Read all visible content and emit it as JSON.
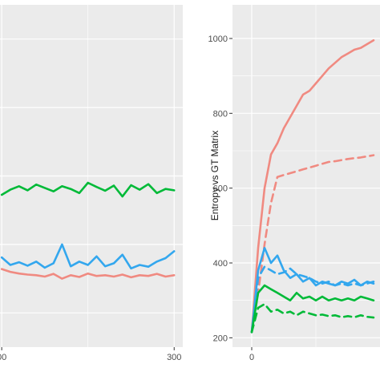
{
  "chart_data": [
    {
      "type": "line",
      "title": "",
      "xlabel": "",
      "ylabel": "",
      "xlim": [
        -3,
        315
      ],
      "ylim": [
        0,
        1
      ],
      "grid": true,
      "x_ticks": [
        0,
        300
      ],
      "x_tick_labels": [
        "00",
        "300"
      ],
      "y_ticks": [],
      "x": [
        0,
        15,
        30,
        45,
        60,
        75,
        90,
        105,
        120,
        135,
        150,
        165,
        180,
        195,
        210,
        225,
        240,
        255,
        270,
        285,
        300
      ],
      "series": [
        {
          "color": "#00BA38",
          "dash": false,
          "values": [
            0.445,
            0.46,
            0.47,
            0.458,
            0.475,
            0.465,
            0.455,
            0.47,
            0.462,
            0.45,
            0.48,
            0.468,
            0.457,
            0.472,
            0.44,
            0.473,
            0.46,
            0.476,
            0.45,
            0.462,
            0.458
          ]
        },
        {
          "color": "#33A7EE",
          "dash": false,
          "values": [
            0.262,
            0.24,
            0.248,
            0.238,
            0.25,
            0.232,
            0.245,
            0.3,
            0.236,
            0.25,
            0.24,
            0.265,
            0.236,
            0.245,
            0.27,
            0.23,
            0.24,
            0.235,
            0.25,
            0.26,
            0.28
          ]
        },
        {
          "color": "#F08A81",
          "dash": false,
          "values": [
            0.228,
            0.22,
            0.215,
            0.212,
            0.21,
            0.206,
            0.214,
            0.2,
            0.21,
            0.205,
            0.215,
            0.208,
            0.21,
            0.206,
            0.212,
            0.204,
            0.21,
            0.208,
            0.214,
            0.206,
            0.21
          ]
        }
      ]
    },
    {
      "type": "line",
      "title": "",
      "xlabel": "",
      "ylabel": "Entropy vs GT Matrix",
      "xlim": [
        -30,
        200
      ],
      "ylim": [
        175,
        1090
      ],
      "grid": true,
      "x_ticks": [
        0
      ],
      "x_tick_labels": [
        "0"
      ],
      "y_ticks": [
        200,
        400,
        600,
        800,
        1000
      ],
      "x": [
        0,
        10,
        20,
        30,
        40,
        50,
        60,
        70,
        80,
        90,
        100,
        110,
        120,
        130,
        140,
        150,
        160,
        170,
        180,
        190
      ],
      "series": [
        {
          "color": "#F08A81",
          "dash": false,
          "values": [
            215,
            440,
            600,
            690,
            720,
            760,
            790,
            820,
            850,
            860,
            880,
            900,
            920,
            935,
            950,
            960,
            970,
            975,
            985,
            995
          ]
        },
        {
          "color": "#F08A81",
          "dash": true,
          "values": [
            215,
            320,
            450,
            560,
            630,
            635,
            640,
            645,
            650,
            655,
            660,
            665,
            670,
            672,
            675,
            678,
            680,
            682,
            685,
            688
          ]
        },
        {
          "color": "#33A7EE",
          "dash": false,
          "values": [
            215,
            380,
            440,
            400,
            420,
            380,
            360,
            370,
            350,
            360,
            340,
            350,
            345,
            340,
            350,
            345,
            355,
            340,
            350,
            345
          ]
        },
        {
          "color": "#33A7EE",
          "dash": true,
          "values": [
            215,
            360,
            390,
            380,
            370,
            375,
            385,
            370,
            365,
            360,
            350,
            345,
            350,
            340,
            345,
            340,
            345,
            340,
            345,
            350
          ]
        },
        {
          "color": "#00BA38",
          "dash": false,
          "values": [
            215,
            320,
            340,
            330,
            320,
            310,
            300,
            320,
            305,
            310,
            300,
            310,
            300,
            305,
            300,
            305,
            300,
            310,
            305,
            300
          ]
        },
        {
          "color": "#00BA38",
          "dash": true,
          "values": [
            215,
            280,
            290,
            270,
            275,
            265,
            270,
            260,
            270,
            265,
            260,
            262,
            258,
            260,
            255,
            258,
            255,
            260,
            256,
            254
          ]
        }
      ]
    }
  ]
}
